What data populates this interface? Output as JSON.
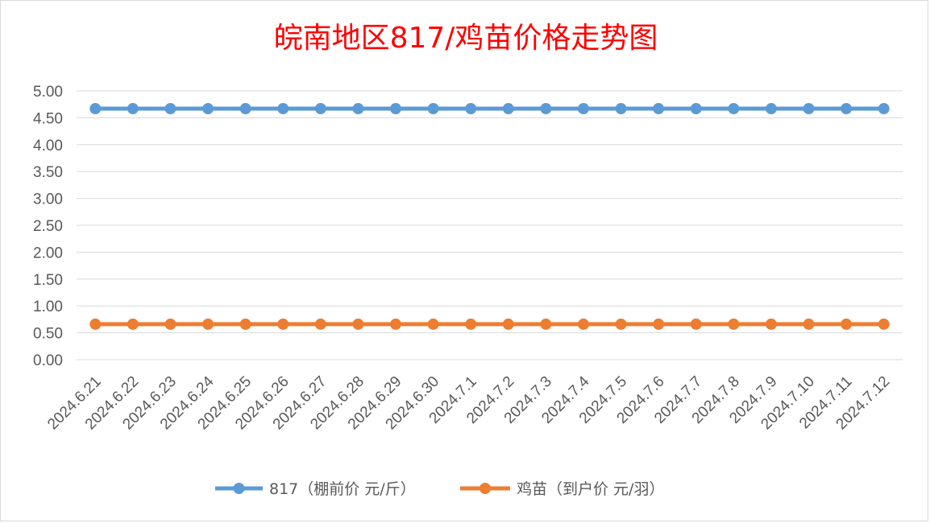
{
  "chart_data": {
    "type": "line",
    "title": "皖南地区817/鸡苗价格走势图",
    "categories": [
      "2024.6.21",
      "2024.6.22",
      "2024.6.23",
      "2024.6.24",
      "2024.6.25",
      "2024.6.26",
      "2024.6.27",
      "2024.6.28",
      "2024.6.29",
      "2024.6.30",
      "2024.7.1",
      "2024.7.2",
      "2024.7.3",
      "2024.7.4",
      "2024.7.5",
      "2024.7.6",
      "2024.7.7",
      "2024.7.8",
      "2024.7.9",
      "2024.7.10",
      "2024.7.11",
      "2024.7.12"
    ],
    "series": [
      {
        "name": "817（棚前价 元/斤）",
        "color": "#5b9bd5",
        "values": [
          4.67,
          4.67,
          4.67,
          4.67,
          4.67,
          4.67,
          4.67,
          4.67,
          4.67,
          4.67,
          4.67,
          4.67,
          4.67,
          4.67,
          4.67,
          4.67,
          4.67,
          4.67,
          4.67,
          4.67,
          4.67,
          4.67
        ]
      },
      {
        "name": "鸡苗（到户价 元/羽）",
        "color": "#ed7d31",
        "values": [
          0.66,
          0.66,
          0.66,
          0.66,
          0.66,
          0.66,
          0.66,
          0.66,
          0.66,
          0.66,
          0.66,
          0.66,
          0.66,
          0.66,
          0.66,
          0.66,
          0.66,
          0.66,
          0.66,
          0.66,
          0.66,
          0.66
        ]
      }
    ],
    "ylim": [
      0,
      5
    ],
    "yticks": [
      "0.00",
      "0.50",
      "1.00",
      "1.50",
      "2.00",
      "2.50",
      "3.00",
      "3.50",
      "4.00",
      "4.50",
      "5.00"
    ],
    "xlabel": "",
    "ylabel": "",
    "grid": true,
    "legend_position": "bottom"
  }
}
